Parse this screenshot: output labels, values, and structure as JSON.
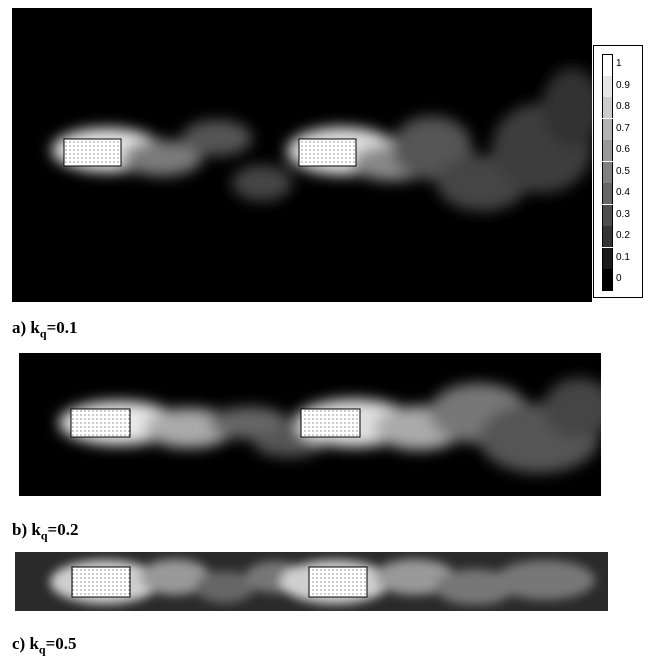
{
  "colorbar": {
    "labels": [
      "1",
      "0.9",
      "0.8",
      "0.7",
      "0.6",
      "0.5",
      "0.4",
      "0.3",
      "0.2",
      "0.1",
      "0"
    ],
    "colors": [
      "#ffffff",
      "#e6e6e6",
      "#cccccc",
      "#b3b3b3",
      "#999999",
      "#808080",
      "#666666",
      "#4d4d4d",
      "#333333",
      "#1a1a1a",
      "#000000"
    ]
  },
  "panels": [
    {
      "label": "a) k",
      "subscript": "q",
      "value": "=0.1"
    },
    {
      "label": "b) k",
      "subscript": "q",
      "value": "=0.2"
    },
    {
      "label": "c) k",
      "subscript": "q",
      "value": "=0.5"
    }
  ]
}
